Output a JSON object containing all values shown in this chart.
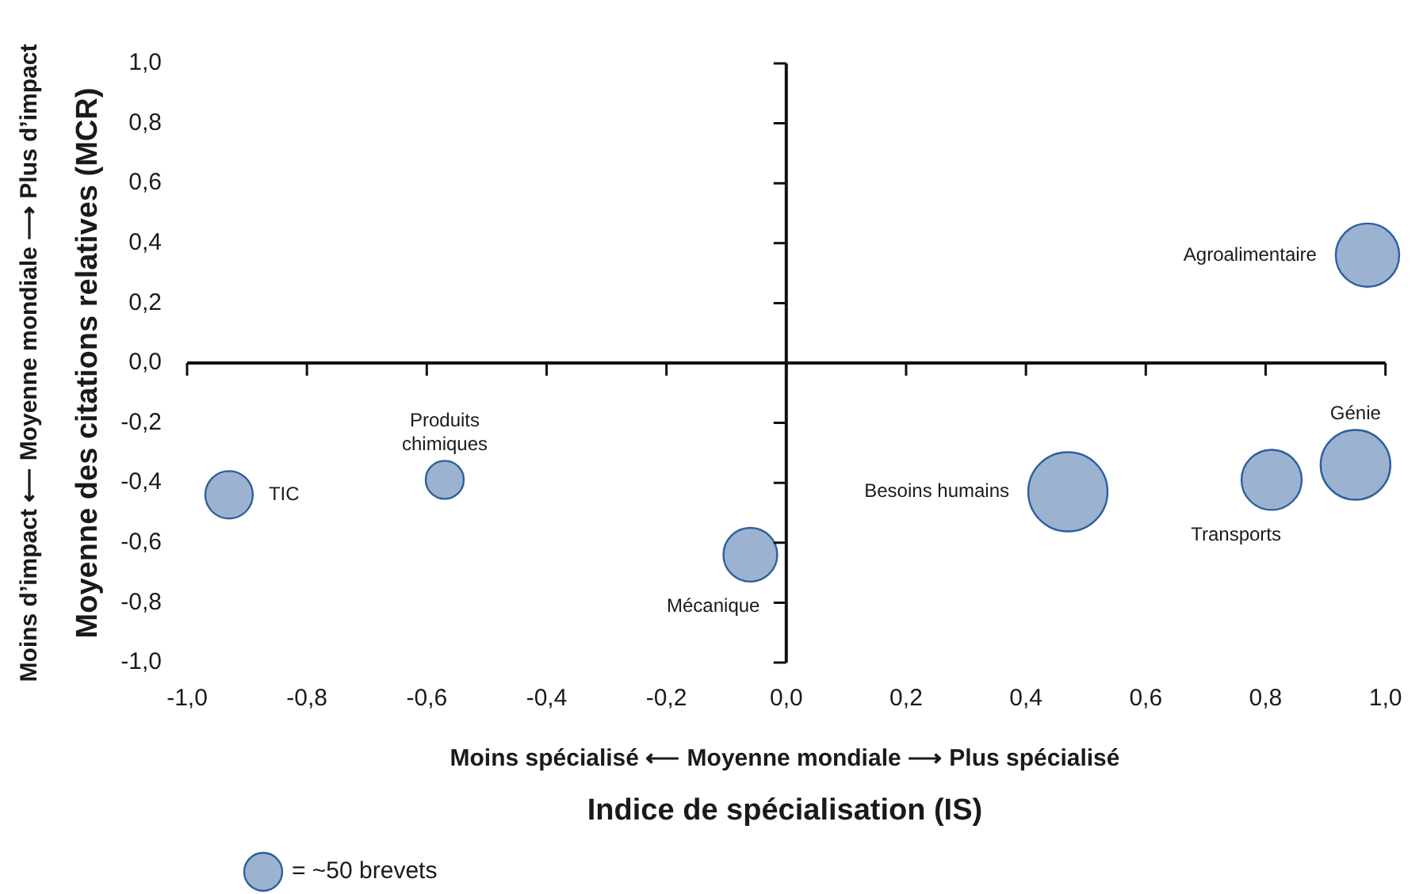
{
  "chart_data": {
    "type": "bubble",
    "xlabel": "Indice de spécialisation (IS)",
    "ylabel": "Moyenne des citations relatives (MCR)",
    "xlim": [
      -1,
      1
    ],
    "ylim": [
      -1,
      1
    ],
    "xticks": [
      {
        "value": -1,
        "label": "-1,0"
      },
      {
        "value": -0.8,
        "label": "-0,8"
      },
      {
        "value": -0.6,
        "label": "-0,6"
      },
      {
        "value": -0.4,
        "label": "-0,4"
      },
      {
        "value": -0.2,
        "label": "-0,2"
      },
      {
        "value": 0,
        "label": "0,0"
      },
      {
        "value": 0.2,
        "label": "0,2"
      },
      {
        "value": 0.4,
        "label": "0,4"
      },
      {
        "value": 0.6,
        "label": "0,6"
      },
      {
        "value": 0.8,
        "label": "0,8"
      },
      {
        "value": 1,
        "label": "1,0"
      }
    ],
    "yticks": [
      {
        "value": 1,
        "label": "1,0"
      },
      {
        "value": 0.8,
        "label": "0,8"
      },
      {
        "value": 0.6,
        "label": "0,6"
      },
      {
        "value": 0.4,
        "label": "0,4"
      },
      {
        "value": 0.2,
        "label": "0,2"
      },
      {
        "value": 0,
        "label": "0,0"
      },
      {
        "value": -0.2,
        "label": "-0,2"
      },
      {
        "value": -0.4,
        "label": "-0,4"
      },
      {
        "value": -0.6,
        "label": "-0,6"
      },
      {
        "value": -0.8,
        "label": "-0,8"
      },
      {
        "value": -1,
        "label": "-1,0"
      }
    ],
    "size_legend": [
      {
        "value": 50,
        "label": "= ~50 brevets"
      }
    ],
    "series": [
      {
        "name": "TIC",
        "color": "#9bb3d1",
        "x": [
          -0.93
        ],
        "values": [
          -0.44
        ],
        "sizes": [
          78
        ]
      },
      {
        "name": "Produits chimiques",
        "color": "#9bb3d1",
        "x": [
          -0.57
        ],
        "values": [
          -0.39
        ],
        "sizes": [
          50
        ]
      },
      {
        "name": "Mécanique",
        "color": "#9bb3d1",
        "x": [
          -0.06
        ],
        "values": [
          -0.64
        ],
        "sizes": [
          100
        ]
      },
      {
        "name": "Besoins humains",
        "color": "#9bb3d1",
        "x": [
          0.47
        ],
        "values": [
          -0.43
        ],
        "sizes": [
          217
        ]
      },
      {
        "name": "Transports",
        "color": "#9bb3d1",
        "x": [
          0.81
        ],
        "values": [
          -0.39
        ],
        "sizes": [
          125
        ]
      },
      {
        "name": "Génie",
        "color": "#9bb3d1",
        "x": [
          0.95
        ],
        "values": [
          -0.34
        ],
        "sizes": [
          168
        ]
      },
      {
        "name": "Agroalimentaire",
        "color": "#9bb3d1",
        "x": [
          0.97
        ],
        "values": [
          0.36
        ],
        "sizes": [
          139
        ]
      }
    ],
    "annotations": [
      "Moins d’impact ⟵ Moyenne mondiale ⟶ Plus d’impact",
      "Moins spécialisé ⟵ Moyenne mondiale ⟶ Plus spécialisé"
    ],
    "legend": false
  }
}
